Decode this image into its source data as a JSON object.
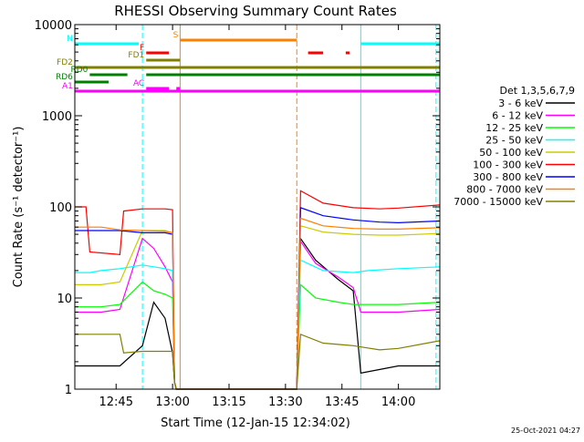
{
  "chart_data": {
    "type": "line",
    "title": "RHESSI Observing Summary Count Rates",
    "xlabel": "Start Time (12-Jan-15 12:34:02)",
    "ylabel": "Count Rate (s⁻¹ detector⁻¹)",
    "y_scale": "log",
    "ylim": [
      1,
      10000
    ],
    "xlim": [
      "12:34:02",
      "14:11:00"
    ],
    "x_ticks": [
      "12:45",
      "13:00",
      "13:15",
      "13:30",
      "13:45",
      "14:00"
    ],
    "y_ticks": [
      "1",
      "10",
      "100",
      "1000",
      "10000"
    ],
    "legend_title": "Det 1,3,5,6,7,9",
    "legend_position": "right",
    "series": [
      {
        "name": "3 - 6 keV",
        "color": "#000000",
        "points": [
          [
            "12:34",
            1.8
          ],
          [
            "12:41",
            1.8
          ],
          [
            "12:46",
            1.8
          ],
          [
            "12:52",
            3
          ],
          [
            "12:55",
            9
          ],
          [
            "12:58",
            6
          ],
          [
            "13:00",
            2.5
          ],
          [
            "13:00:30",
            1.2
          ],
          [
            "13:01",
            1
          ],
          [
            "13:33",
            1
          ],
          [
            "13:34",
            45
          ],
          [
            "13:38",
            26
          ],
          [
            "13:44",
            16
          ],
          [
            "13:48",
            12
          ],
          [
            "13:50",
            1.5
          ],
          [
            "14:00",
            1.8
          ],
          [
            "14:11",
            1.8
          ]
        ]
      },
      {
        "name": "6 - 12 keV",
        "color": "#ff00ff",
        "points": [
          [
            "12:34",
            7
          ],
          [
            "12:41",
            7
          ],
          [
            "12:46",
            7.5
          ],
          [
            "12:52",
            45
          ],
          [
            "12:55",
            35
          ],
          [
            "12:58",
            22
          ],
          [
            "13:00",
            15
          ],
          [
            "13:00:30",
            1.2
          ],
          [
            "13:01",
            1
          ],
          [
            "13:33",
            1
          ],
          [
            "13:34",
            42
          ],
          [
            "13:38",
            24
          ],
          [
            "13:44",
            17
          ],
          [
            "13:48",
            13
          ],
          [
            "13:50",
            7
          ],
          [
            "14:00",
            7
          ],
          [
            "14:11",
            7.5
          ]
        ]
      },
      {
        "name": "12 - 25 keV",
        "color": "#00ff00",
        "points": [
          [
            "12:34",
            8
          ],
          [
            "12:41",
            8
          ],
          [
            "12:46",
            8.5
          ],
          [
            "12:52",
            15
          ],
          [
            "12:55",
            12
          ],
          [
            "12:58",
            11
          ],
          [
            "13:00",
            10
          ],
          [
            "13:00:30",
            1.2
          ],
          [
            "13:01",
            1
          ],
          [
            "13:33",
            1
          ],
          [
            "13:34",
            14
          ],
          [
            "13:38",
            10
          ],
          [
            "13:44",
            9
          ],
          [
            "13:48",
            8.5
          ],
          [
            "13:50",
            8.5
          ],
          [
            "14:00",
            8.5
          ],
          [
            "14:11",
            9
          ]
        ]
      },
      {
        "name": "25 - 50 keV",
        "color": "#00ffff",
        "points": [
          [
            "12:34",
            19
          ],
          [
            "12:38",
            19
          ],
          [
            "12:41",
            20
          ],
          [
            "12:46",
            21
          ],
          [
            "12:52",
            23
          ],
          [
            "12:55",
            22
          ],
          [
            "12:58",
            21
          ],
          [
            "13:00",
            20
          ],
          [
            "13:00:30",
            1.2
          ],
          [
            "13:01",
            1
          ],
          [
            "13:33",
            1
          ],
          [
            "13:34",
            26
          ],
          [
            "13:40",
            20
          ],
          [
            "13:48",
            19
          ],
          [
            "13:52",
            20
          ],
          [
            "14:00",
            21
          ],
          [
            "14:11",
            22
          ]
        ]
      },
      {
        "name": "50 - 100 keV",
        "color": "#cccc00",
        "points": [
          [
            "12:34",
            14
          ],
          [
            "12:41",
            14
          ],
          [
            "12:46",
            15
          ],
          [
            "12:52",
            55
          ],
          [
            "12:58",
            55
          ],
          [
            "13:00",
            52
          ],
          [
            "13:00:30",
            1.2
          ],
          [
            "13:01",
            1
          ],
          [
            "13:33",
            1
          ],
          [
            "13:34",
            62
          ],
          [
            "13:40",
            53
          ],
          [
            "13:48",
            50
          ],
          [
            "13:55",
            49
          ],
          [
            "14:00",
            49
          ],
          [
            "14:11",
            51
          ]
        ]
      },
      {
        "name": "100 - 300 keV",
        "color": "#ff0000",
        "points": [
          [
            "12:34",
            100
          ],
          [
            "12:37",
            100
          ],
          [
            "12:38",
            32
          ],
          [
            "12:46",
            30
          ],
          [
            "12:47",
            90
          ],
          [
            "12:52",
            95
          ],
          [
            "12:58",
            95
          ],
          [
            "13:00",
            93
          ],
          [
            "13:00:30",
            1.2
          ],
          [
            "13:01",
            1
          ],
          [
            "13:33",
            1
          ],
          [
            "13:34",
            150
          ],
          [
            "13:40",
            110
          ],
          [
            "13:48",
            98
          ],
          [
            "13:55",
            95
          ],
          [
            "14:00",
            97
          ],
          [
            "14:11",
            105
          ]
        ]
      },
      {
        "name": "300 - 800 keV",
        "color": "#0000ff",
        "points": [
          [
            "12:34",
            55
          ],
          [
            "12:41",
            55
          ],
          [
            "12:46",
            55
          ],
          [
            "12:52",
            52
          ],
          [
            "12:58",
            52
          ],
          [
            "13:00",
            50
          ],
          [
            "13:00:30",
            1.2
          ],
          [
            "13:01",
            1
          ],
          [
            "13:33",
            1
          ],
          [
            "13:34",
            98
          ],
          [
            "13:40",
            80
          ],
          [
            "13:48",
            72
          ],
          [
            "13:55",
            68
          ],
          [
            "14:00",
            67
          ],
          [
            "14:11",
            70
          ]
        ]
      },
      {
        "name": "800 - 7000 keV",
        "color": "#ff8000",
        "points": [
          [
            "12:34",
            60
          ],
          [
            "12:41",
            60
          ],
          [
            "12:46",
            56
          ],
          [
            "12:52",
            55
          ],
          [
            "12:58",
            54
          ],
          [
            "13:00",
            52
          ],
          [
            "13:00:30",
            1.2
          ],
          [
            "13:01",
            1
          ],
          [
            "13:33",
            1
          ],
          [
            "13:34",
            75
          ],
          [
            "13:40",
            62
          ],
          [
            "13:48",
            58
          ],
          [
            "13:55",
            57
          ],
          [
            "14:00",
            57
          ],
          [
            "14:11",
            59
          ]
        ]
      },
      {
        "name": "7000 - 15000 keV",
        "color": "#808000",
        "points": [
          [
            "12:34",
            4
          ],
          [
            "12:41",
            4
          ],
          [
            "12:46",
            4
          ],
          [
            "12:47",
            2.5
          ],
          [
            "12:52",
            2.6
          ],
          [
            "12:58",
            2.6
          ],
          [
            "13:00",
            2.6
          ],
          [
            "13:00:30",
            1.2
          ],
          [
            "13:01",
            1
          ],
          [
            "13:33",
            1
          ],
          [
            "13:34",
            4
          ],
          [
            "13:40",
            3.2
          ],
          [
            "13:48",
            3
          ],
          [
            "13:55",
            2.7
          ],
          [
            "14:00",
            2.8
          ],
          [
            "14:11",
            3.4
          ]
        ]
      }
    ],
    "flags": [
      {
        "label": "N",
        "color": "#00ffff",
        "segments": [
          [
            "12:34",
            "12:51"
          ],
          [
            "13:50",
            "14:11"
          ]
        ]
      },
      {
        "label": "S",
        "color": "#ff8000",
        "segments": [
          [
            "13:02",
            "13:33"
          ]
        ]
      },
      {
        "label": "F",
        "color": "#ff0000",
        "segments": [
          [
            "12:53",
            "12:59"
          ],
          [
            "13:36",
            "13:40"
          ],
          [
            "13:46",
            "13:47"
          ]
        ]
      },
      {
        "label": "FD1",
        "color": "#808000",
        "segments": [
          [
            "12:53",
            "13:02"
          ]
        ]
      },
      {
        "label": "FD2",
        "color": "#808000",
        "segments": [
          [
            "12:34",
            "14:11"
          ]
        ]
      },
      {
        "label": "RD0",
        "color": "#008000",
        "segments": [
          [
            "12:38",
            "12:48"
          ],
          [
            "12:53",
            "14:11"
          ]
        ]
      },
      {
        "label": "RD6",
        "color": "#008000",
        "segments": [
          [
            "12:34",
            "12:43"
          ]
        ]
      },
      {
        "label": "A1",
        "color": "#ff00ff",
        "segments": [
          [
            "12:34",
            "14:11"
          ]
        ]
      },
      {
        "label": "AC",
        "color": "#ff00ff",
        "segments": [
          [
            "12:53",
            "12:59"
          ],
          [
            "13:01",
            "13:02"
          ]
        ]
      }
    ],
    "vertical_markers": [
      {
        "time": "12:52",
        "color": "#00ffff",
        "style": "dashed"
      },
      {
        "time": "13:02",
        "color": "#ff8000",
        "style": "solid"
      },
      {
        "time": "13:33",
        "color": "#ff8000",
        "style": "dashed"
      },
      {
        "time": "13:50",
        "color": "#00ffff",
        "style": "solid"
      },
      {
        "time": "14:10",
        "color": "#00ffff",
        "style": "dashed"
      }
    ],
    "timestamp": "25-Oct-2021 04:27"
  }
}
